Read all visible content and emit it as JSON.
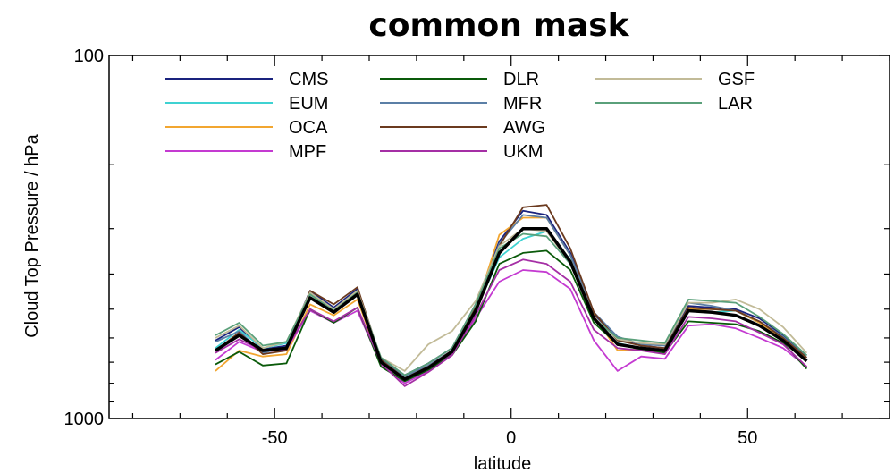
{
  "chart_data": {
    "type": "line",
    "title": "common mask",
    "xlabel": "latitude",
    "ylabel": "Cloud Top Pressure / hPa",
    "xlim": [
      -85,
      80
    ],
    "ylim": [
      1000,
      100
    ],
    "y_scale": "log",
    "x_ticks": [
      -50,
      0,
      50
    ],
    "y_ticks_labeled": [
      100,
      1000
    ],
    "grid": false,
    "legend_position": "top",
    "x": [
      -62.5,
      -57.5,
      -52.5,
      -47.5,
      -42.5,
      -37.5,
      -32.5,
      -27.5,
      -22.5,
      -17.5,
      -12.5,
      -7.5,
      -2.5,
      2.5,
      7.5,
      12.5,
      17.5,
      22.5,
      27.5,
      32.5,
      37.5,
      42.5,
      47.5,
      52.5,
      57.5,
      62.5
    ],
    "series": [
      {
        "name": "CMS",
        "color": "#1a237e",
        "values": [
          610,
          560,
          645,
          630,
          445,
          495,
          440,
          685,
          760,
          705,
          640,
          485,
          325,
          268,
          275,
          350,
          515,
          605,
          630,
          640,
          490,
          495,
          500,
          530,
          590,
          670
        ]
      },
      {
        "name": "EUM",
        "color": "#3fd2d2",
        "values": [
          640,
          570,
          640,
          620,
          455,
          505,
          450,
          690,
          775,
          720,
          655,
          505,
          360,
          320,
          305,
          365,
          530,
          620,
          640,
          660,
          505,
          510,
          505,
          545,
          600,
          690
        ]
      },
      {
        "name": "OCA",
        "color": "#f2a630",
        "values": [
          740,
          650,
          675,
          665,
          485,
          520,
          470,
          710,
          775,
          735,
          660,
          500,
          312,
          280,
          280,
          355,
          520,
          650,
          645,
          650,
          500,
          500,
          505,
          545,
          600,
          690
        ]
      },
      {
        "name": "MPF",
        "color": "#c43ad1",
        "values": [
          690,
          615,
          655,
          645,
          505,
          545,
          505,
          710,
          800,
          740,
          665,
          530,
          420,
          390,
          395,
          440,
          610,
          740,
          675,
          685,
          555,
          550,
          565,
          600,
          640,
          720
        ]
      },
      {
        "name": "DLR",
        "color": "#0a5a0a",
        "values": [
          710,
          655,
          715,
          705,
          500,
          545,
          495,
          720,
          790,
          735,
          670,
          540,
          375,
          350,
          345,
          390,
          545,
          625,
          645,
          660,
          540,
          545,
          550,
          575,
          620,
          730
        ]
      },
      {
        "name": "MFR",
        "color": "#5b7fa6",
        "values": [
          615,
          575,
          660,
          635,
          450,
          500,
          445,
          690,
          765,
          715,
          650,
          495,
          330,
          275,
          280,
          355,
          510,
          595,
          625,
          630,
          480,
          490,
          505,
          540,
          595,
          680
        ]
      },
      {
        "name": "AWG",
        "color": "#6b3a1f",
        "values": [
          650,
          580,
          665,
          650,
          445,
          485,
          435,
          690,
          775,
          720,
          650,
          495,
          335,
          262,
          258,
          340,
          510,
          610,
          630,
          640,
          495,
          500,
          505,
          540,
          600,
          680
        ]
      },
      {
        "name": "UKM",
        "color": "#a52fa5",
        "values": [
          660,
          605,
          650,
          640,
          500,
          540,
          495,
          705,
          815,
          745,
          670,
          520,
          390,
          365,
          375,
          420,
          570,
          640,
          650,
          665,
          525,
          530,
          540,
          580,
          625,
          720
        ]
      },
      {
        "name": "GSF",
        "color": "#c2bb98",
        "values": [
          600,
          555,
          640,
          615,
          450,
          500,
          445,
          680,
          740,
          625,
          575,
          475,
          335,
          300,
          305,
          375,
          525,
          605,
          620,
          625,
          480,
          480,
          470,
          500,
          560,
          660
        ]
      },
      {
        "name": "LAR",
        "color": "#5aa07a",
        "values": [
          590,
          545,
          630,
          615,
          455,
          505,
          450,
          680,
          760,
          705,
          640,
          485,
          340,
          310,
          315,
          375,
          530,
          600,
          610,
          620,
          470,
          475,
          480,
          525,
          585,
          670
        ]
      }
    ],
    "mean_series": {
      "color": "#000000",
      "values": [
        650,
        590,
        650,
        640,
        465,
        510,
        455,
        700,
        780,
        725,
        655,
        505,
        350,
        300,
        300,
        370,
        530,
        625,
        640,
        650,
        505,
        510,
        520,
        555,
        610,
        695
      ]
    }
  }
}
